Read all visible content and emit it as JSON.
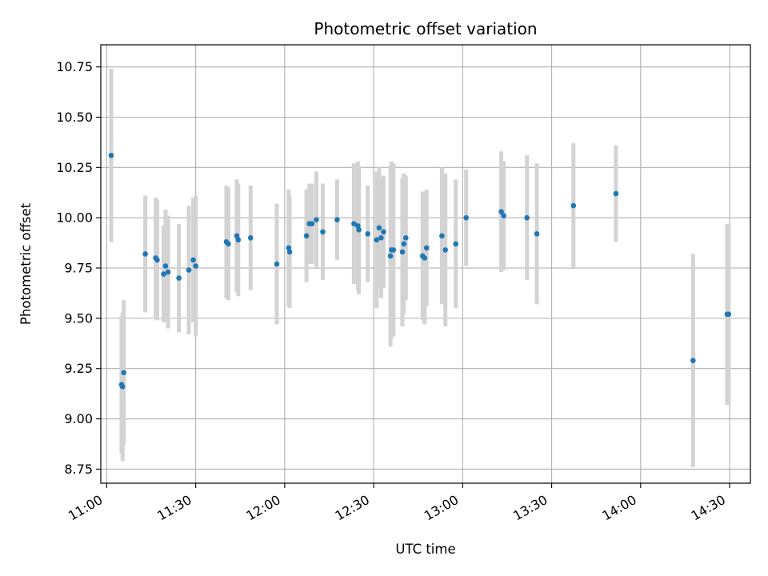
{
  "chart_data": {
    "type": "scatter",
    "title": "Photometric offset variation",
    "xlabel": "UTC time",
    "ylabel": "Photometric offset",
    "xlim": [
      "10:58",
      "14:37"
    ],
    "ylim": [
      8.68,
      10.86
    ],
    "x_ticks": [
      "11:00",
      "11:30",
      "12:00",
      "12:30",
      "13:00",
      "13:30",
      "14:00",
      "14:30"
    ],
    "y_ticks": [
      "8.75",
      "9.00",
      "9.25",
      "9.50",
      "9.75",
      "10.00",
      "10.25",
      "10.50",
      "10.75"
    ],
    "grid": true,
    "colors": {
      "point": "#1f77b4",
      "errorbar": "#d3d3d3",
      "grid": "#b0b0b0"
    },
    "series": [
      {
        "x": [
          "11:01:30",
          "11:05:00",
          "11:05:20",
          "11:05:45",
          "11:13:00",
          "11:16:30",
          "11:17:00",
          "11:19:10",
          "11:19:50",
          "11:20:40",
          "11:24:20",
          "11:27:40",
          "11:29:10",
          "11:30:00",
          "11:40:20",
          "11:41:00",
          "11:43:50",
          "11:44:20",
          "11:48:30",
          "11:57:20",
          "12:01:20",
          "12:01:40",
          "12:07:20",
          "12:08:20",
          "12:09:10",
          "12:10:40",
          "12:12:50",
          "12:17:40",
          "12:23:20",
          "12:24:40",
          "12:25:00",
          "12:28:00",
          "12:31:00",
          "12:31:50",
          "12:32:30",
          "12:33:20",
          "12:35:40",
          "12:36:00",
          "12:36:40",
          "12:39:40",
          "12:40:10",
          "12:40:50",
          "12:46:30",
          "12:47:10",
          "12:47:50",
          "12:53:00",
          "12:54:10",
          "12:57:40",
          "13:01:10",
          "13:13:00",
          "13:13:50",
          "13:21:40",
          "13:25:00",
          "13:37:20",
          "13:51:40",
          "14:17:40",
          "14:29:10",
          "14:29:40"
        ],
        "y": [
          10.31,
          9.17,
          9.16,
          9.23,
          9.82,
          9.8,
          9.79,
          9.72,
          9.76,
          9.73,
          9.7,
          9.74,
          9.79,
          9.76,
          9.88,
          9.87,
          9.91,
          9.89,
          9.9,
          9.77,
          9.85,
          9.83,
          9.91,
          9.97,
          9.97,
          9.99,
          9.93,
          9.99,
          9.97,
          9.96,
          9.94,
          9.92,
          9.89,
          9.95,
          9.9,
          9.93,
          9.81,
          9.84,
          9.84,
          9.83,
          9.87,
          9.9,
          9.81,
          9.8,
          9.85,
          9.91,
          9.84,
          9.87,
          10.0,
          10.03,
          10.01,
          10.0,
          9.92,
          10.06,
          10.12,
          9.29,
          9.52,
          9.52
        ],
        "y_err": [
          0.43,
          0.34,
          0.37,
          0.36,
          0.29,
          0.3,
          0.3,
          0.24,
          0.28,
          0.28,
          0.27,
          0.32,
          0.31,
          0.35,
          0.28,
          0.28,
          0.28,
          0.28,
          0.26,
          0.3,
          0.29,
          0.28,
          0.23,
          0.2,
          0.2,
          0.24,
          0.24,
          0.2,
          0.3,
          0.32,
          0.32,
          0.24,
          0.34,
          0.3,
          0.3,
          0.28,
          0.45,
          0.44,
          0.43,
          0.37,
          0.35,
          0.31,
          0.32,
          0.33,
          0.29,
          0.34,
          0.38,
          0.32,
          0.24,
          0.3,
          0.27,
          0.31,
          0.35,
          0.31,
          0.24,
          0.53,
          0.45,
          0.45
        ]
      }
    ]
  }
}
